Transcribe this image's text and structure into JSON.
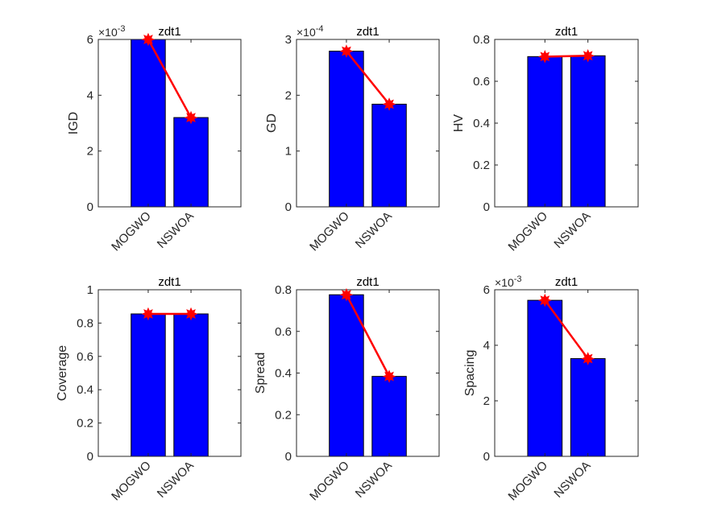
{
  "figure": {
    "background": "#ffffff"
  },
  "colors": {
    "bar": "#0000ff",
    "bar_edge": "#000000",
    "line": "#ff0000",
    "marker": "#ff0000",
    "axis": "#262626"
  },
  "chart_data": [
    {
      "type": "bar",
      "title": "zdt1",
      "xlabel": "",
      "ylabel": "IGD",
      "categories": [
        "MOGWO",
        "NSWOA"
      ],
      "values": [
        0.006,
        0.0032
      ],
      "line_overlay": [
        0.006,
        0.0032
      ],
      "ylim": [
        0,
        0.006
      ],
      "yticks": [
        0,
        2,
        4,
        6
      ],
      "ytick_labels": [
        "0",
        "2",
        "4",
        "6"
      ],
      "exponent_label": "×10",
      "exponent": "-3",
      "grid": false
    },
    {
      "type": "bar",
      "title": "zdt1",
      "xlabel": "",
      "ylabel": "GD",
      "categories": [
        "MOGWO",
        "NSWOA"
      ],
      "values": [
        0.000279,
        0.000184
      ],
      "line_overlay": [
        0.000279,
        0.000184
      ],
      "ylim": [
        0,
        0.0003
      ],
      "yticks": [
        0,
        1,
        2,
        3
      ],
      "ytick_labels": [
        "0",
        "1",
        "2",
        "3"
      ],
      "exponent_label": "×10",
      "exponent": "-4",
      "grid": false
    },
    {
      "type": "bar",
      "title": "zdt1",
      "xlabel": "",
      "ylabel": "HV",
      "categories": [
        "MOGWO",
        "NSWOA"
      ],
      "values": [
        0.718,
        0.722
      ],
      "line_overlay": [
        0.718,
        0.722
      ],
      "ylim": [
        0,
        0.8
      ],
      "yticks": [
        0,
        0.2,
        0.4,
        0.6,
        0.8
      ],
      "ytick_labels": [
        "0",
        "0.2",
        "0.4",
        "0.6",
        "0.8"
      ],
      "exponent_label": "",
      "exponent": "",
      "grid": false
    },
    {
      "type": "bar",
      "title": "zdt1",
      "xlabel": "",
      "ylabel": "Coverage",
      "categories": [
        "MOGWO",
        "NSWOA"
      ],
      "values": [
        0.855,
        0.855
      ],
      "line_overlay": [
        0.855,
        0.855
      ],
      "ylim": [
        0,
        1
      ],
      "yticks": [
        0,
        0.2,
        0.4,
        0.6,
        0.8,
        1
      ],
      "ytick_labels": [
        "0",
        "0.2",
        "0.4",
        "0.6",
        "0.8",
        "1"
      ],
      "exponent_label": "",
      "exponent": "",
      "grid": false
    },
    {
      "type": "bar",
      "title": "zdt1",
      "xlabel": "",
      "ylabel": "Spread",
      "categories": [
        "MOGWO",
        "NSWOA"
      ],
      "values": [
        0.776,
        0.384
      ],
      "line_overlay": [
        0.776,
        0.384
      ],
      "ylim": [
        0,
        0.8
      ],
      "yticks": [
        0,
        0.2,
        0.4,
        0.6,
        0.8
      ],
      "ytick_labels": [
        "0",
        "0.2",
        "0.4",
        "0.6",
        "0.8"
      ],
      "exponent_label": "",
      "exponent": "",
      "grid": false
    },
    {
      "type": "bar",
      "title": "zdt1",
      "xlabel": "",
      "ylabel": "Spacing",
      "categories": [
        "MOGWO",
        "NSWOA"
      ],
      "values": [
        0.00562,
        0.00352
      ],
      "line_overlay": [
        0.00562,
        0.00352
      ],
      "ylim": [
        0,
        0.006
      ],
      "yticks": [
        0,
        2,
        4,
        6
      ],
      "ytick_labels": [
        "0",
        "2",
        "4",
        "6"
      ],
      "exponent_label": "×10",
      "exponent": "-3",
      "grid": false
    }
  ]
}
